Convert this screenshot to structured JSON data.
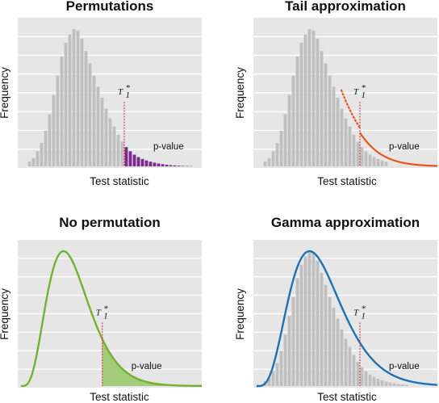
{
  "chart_data": [
    {
      "type": "bar",
      "title": "Permutations",
      "xlabel": "Test statistic",
      "ylabel": "Frequency",
      "threshold_label": "T",
      "threshold_sub": "1",
      "threshold_sup": "*",
      "tail_label": "p-value",
      "colors": {
        "bars": "#bfbfbf",
        "tail": "#7a2a8c",
        "threshold": "#e0202a"
      },
      "hist_heights": [
        0.035,
        0.06,
        0.11,
        0.17,
        0.26,
        0.38,
        0.52,
        0.66,
        0.8,
        0.9,
        0.96,
        1.0,
        0.99,
        0.93,
        0.84,
        0.75,
        0.66,
        0.58,
        0.5,
        0.42,
        0.35,
        0.29,
        0.23,
        0.18,
        0.14,
        0.11,
        0.085,
        0.068,
        0.054,
        0.043,
        0.034,
        0.027,
        0.021,
        0.016,
        0.012,
        0.009,
        0.007,
        0.005,
        0.0035,
        0.0025,
        0.0018
      ],
      "threshold_bin": 24
    },
    {
      "type": "bar",
      "title": "Tail approximation",
      "xlabel": "Test statistic",
      "ylabel": "Frequency",
      "threshold_label": "T",
      "threshold_sub": "1",
      "threshold_sup": "*",
      "tail_label": "p-value",
      "colors": {
        "bars": "#bfbfbf",
        "curve": "#e8561c",
        "threshold": "#e0202a"
      },
      "hist_heights": [
        0.035,
        0.06,
        0.11,
        0.17,
        0.26,
        0.38,
        0.52,
        0.66,
        0.8,
        0.9,
        0.96,
        1.0,
        0.99,
        0.93,
        0.84,
        0.75,
        0.66,
        0.58,
        0.5,
        0.42,
        0.35,
        0.29,
        0.23,
        0.18,
        0.14,
        0.11,
        0.085,
        0.068,
        0.054,
        0.043,
        0.034
      ],
      "threshold_bin": 24
    },
    {
      "type": "area",
      "title": "No permutation",
      "xlabel": "Test statistic",
      "ylabel": "Frequency",
      "threshold_label": "T",
      "threshold_sub": "1",
      "threshold_sup": "*",
      "tail_label": "p-value",
      "colors": {
        "curve": "#72b32e",
        "fill": "#a2cb7a",
        "threshold": "#e0202a"
      },
      "gamma_shape": 5,
      "threshold_fraction": 0.45
    },
    {
      "type": "area",
      "title": "Gamma approximation",
      "xlabel": "Test statistic",
      "ylabel": "Frequency",
      "threshold_label": "T",
      "threshold_sub": "1",
      "threshold_sup": "*",
      "tail_label": "p-value",
      "colors": {
        "bars": "#bfbfbf",
        "curve": "#1a73b8",
        "tail": "#5b9bd0",
        "threshold": "#e0202a"
      },
      "gamma_shape": 5,
      "threshold_fraction": 0.45,
      "hist_heights": [
        0.035,
        0.06,
        0.11,
        0.17,
        0.26,
        0.38,
        0.52,
        0.66,
        0.8,
        0.9,
        0.96,
        1.0,
        0.99,
        0.93,
        0.84,
        0.75,
        0.66,
        0.58,
        0.5,
        0.42,
        0.35,
        0.29,
        0.23,
        0.18,
        0.14,
        0.11,
        0.085,
        0.068,
        0.054,
        0.043,
        0.034,
        0.027,
        0.021,
        0.016,
        0.012,
        0.009
      ]
    }
  ]
}
